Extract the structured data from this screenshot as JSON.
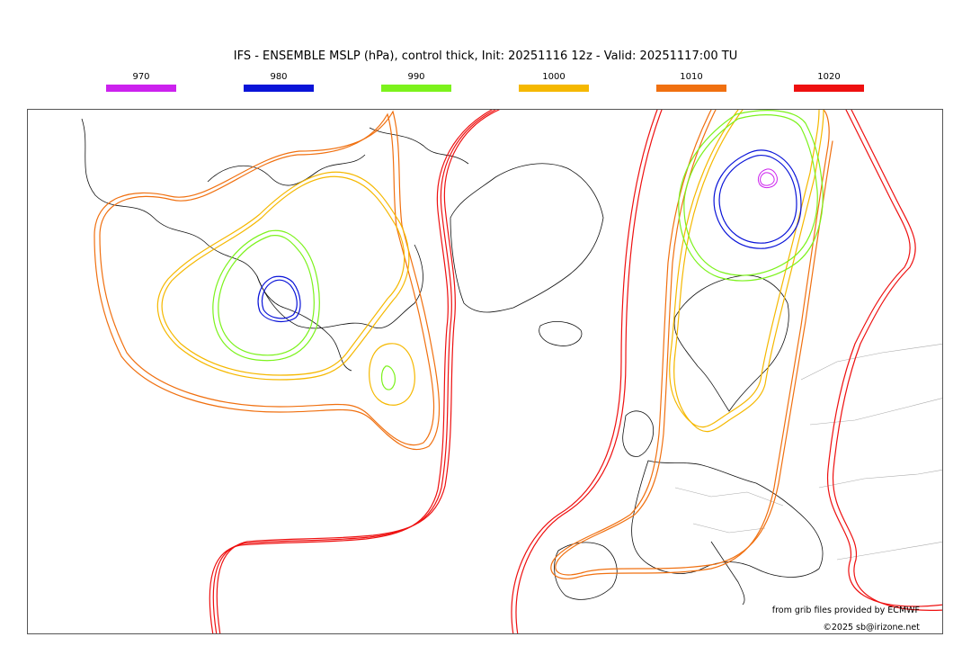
{
  "title": "IFS - ENSEMBLE MSLP (hPa), control thick, Init: 20251116 12z - Valid: 20251117:00 TU",
  "legend": [
    {
      "label": "970",
      "color": "#cc22ee"
    },
    {
      "label": "980",
      "color": "#0a14d8"
    },
    {
      "label": "990",
      "color": "#7cf21c"
    },
    {
      "label": "1000",
      "color": "#f5b800"
    },
    {
      "label": "1010",
      "color": "#f07010"
    },
    {
      "label": "1020",
      "color": "#ee1010"
    }
  ],
  "credits": {
    "source": "from grib files provided by ECMWF",
    "copyright": "©2025 sb@irizone.net"
  }
}
